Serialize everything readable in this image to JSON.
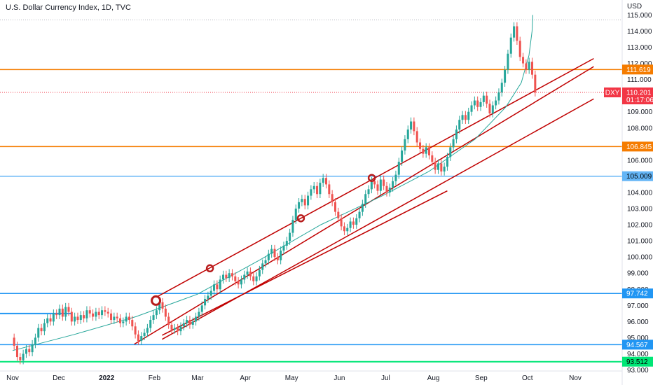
{
  "chart_data": {
    "type": "candlestick",
    "title": "U.S. Dollar Currency Index, 1D, TVC",
    "currency": "USD",
    "y_axis": {
      "ticks": [
        "93.000",
        "94.000",
        "95.000",
        "96.000",
        "97.000",
        "98.000",
        "99.000",
        "100.000",
        "101.000",
        "102.000",
        "103.000",
        "104.000",
        "105.000",
        "106.000",
        "107.000",
        "108.000",
        "109.000",
        "110.000",
        "111.000",
        "112.000",
        "113.000",
        "114.000",
        "115.000"
      ],
      "range": [
        93.0,
        115.0
      ]
    },
    "x_axis": {
      "ticks": [
        {
          "label": "Nov",
          "day": 0
        },
        {
          "label": "Dec",
          "day": 30
        },
        {
          "label": "2022",
          "day": 61,
          "year": true
        },
        {
          "label": "Feb",
          "day": 92
        },
        {
          "label": "Mar",
          "day": 120
        },
        {
          "label": "Apr",
          "day": 151
        },
        {
          "label": "May",
          "day": 181
        },
        {
          "label": "Jun",
          "day": 212
        },
        {
          "label": "Jul",
          "day": 242
        },
        {
          "label": "Aug",
          "day": 273
        },
        {
          "label": "Sep",
          "day": 304
        },
        {
          "label": "Oct",
          "day": 334
        },
        {
          "label": "Nov",
          "day": 365
        }
      ]
    },
    "levels": [
      {
        "name": "level-111-619",
        "price": 111.619,
        "label": "111.619",
        "color": "#f57c00",
        "width": 1.5
      },
      {
        "name": "level-106-845",
        "price": 106.845,
        "label": "106.845",
        "color": "#f57c00",
        "width": 1.5
      },
      {
        "name": "level-105-009",
        "price": 105.009,
        "label": "105.009",
        "color": "#64b5f6",
        "width": 1.5
      },
      {
        "name": "level-97-742",
        "price": 97.742,
        "label": "97.742",
        "color": "#2196f3",
        "width": 1.5
      },
      {
        "name": "level-94-567",
        "price": 94.567,
        "label": "94.567",
        "color": "#2196f3",
        "width": 1.5
      },
      {
        "name": "level-93-512",
        "price": 93.512,
        "label": "93.512",
        "color": "#00e676",
        "width": 2
      }
    ],
    "short_level": {
      "price": 96.5,
      "day_start": 0,
      "day_end": 38,
      "color": "#2196f3"
    },
    "current_price": {
      "symbol": "DXY",
      "price": 110.201,
      "countdown": "01:17:06",
      "color": "#f23645"
    },
    "high_marker": {
      "price": 114.7
    },
    "trend_lines": [
      {
        "name": "channel-upper-line",
        "from": {
          "day": 93,
          "price": 97.5
        },
        "to": {
          "day": 377,
          "price": 112.3
        },
        "color": "#c00000"
      },
      {
        "name": "channel-middle-line",
        "from": {
          "day": 79,
          "price": 94.6
        },
        "to": {
          "day": 377,
          "price": 111.8
        },
        "color": "#c00000"
      },
      {
        "name": "channel-lower-line",
        "from": {
          "day": 97,
          "price": 94.9
        },
        "to": {
          "day": 377,
          "price": 109.8
        },
        "color": "#c00000"
      },
      {
        "name": "short-lower-line",
        "from": {
          "day": 97,
          "price": 95.15
        },
        "to": {
          "day": 282,
          "price": 104.1
        },
        "color": "#c00000"
      }
    ],
    "touch_points": [
      {
        "day": 93,
        "price": 97.3,
        "large": true
      },
      {
        "day": 128,
        "price": 99.3,
        "large": false
      },
      {
        "day": 187,
        "price": 102.4,
        "large": false
      },
      {
        "day": 233,
        "price": 104.9,
        "large": false
      }
    ],
    "curve": {
      "color": "#26a69a",
      "points": [
        [
          0,
          94.2
        ],
        [
          40,
          95.2
        ],
        [
          80,
          96.3
        ],
        [
          120,
          97.7
        ],
        [
          160,
          99.8
        ],
        [
          200,
          102.0
        ],
        [
          240,
          103.8
        ],
        [
          270,
          105.3
        ],
        [
          300,
          107.3
        ],
        [
          320,
          109.3
        ],
        [
          330,
          110.8
        ],
        [
          335,
          112.5
        ],
        [
          337,
          114.0
        ],
        [
          337.5,
          115.0
        ]
      ]
    },
    "candles": [
      [
        95.0,
        94.5
      ],
      [
        94.5,
        93.8
      ],
      [
        93.8,
        93.6
      ],
      [
        93.6,
        94.0
      ],
      [
        94.0,
        94.3
      ],
      [
        94.3,
        94.1
      ],
      [
        94.1,
        94.6
      ],
      [
        94.6,
        95.0
      ],
      [
        95.0,
        95.6
      ],
      [
        95.6,
        95.4
      ],
      [
        95.4,
        95.9
      ],
      [
        95.9,
        96.2
      ],
      [
        96.2,
        96.0
      ],
      [
        96.0,
        96.5
      ],
      [
        96.5,
        96.4
      ],
      [
        96.4,
        96.8
      ],
      [
        96.8,
        96.3
      ],
      [
        96.3,
        96.9
      ],
      [
        96.9,
        96.6
      ],
      [
        96.6,
        96.0
      ],
      [
        96.0,
        96.3
      ],
      [
        96.3,
        96.1
      ],
      [
        96.1,
        96.4
      ],
      [
        96.4,
        96.2
      ],
      [
        96.2,
        96.7
      ],
      [
        96.7,
        96.5
      ],
      [
        96.5,
        96.3
      ],
      [
        96.3,
        96.6
      ],
      [
        96.6,
        96.4
      ],
      [
        96.4,
        96.7
      ],
      [
        96.7,
        96.6
      ],
      [
        96.6,
        96.5
      ],
      [
        96.5,
        96.1
      ],
      [
        96.1,
        96.3
      ],
      [
        96.3,
        96.2
      ],
      [
        96.2,
        95.9
      ],
      [
        95.9,
        96.0
      ],
      [
        96.0,
        96.3
      ],
      [
        96.3,
        96.1
      ],
      [
        96.1,
        95.7
      ],
      [
        95.7,
        95.2
      ],
      [
        95.2,
        94.8
      ],
      [
        94.8,
        95.1
      ],
      [
        95.1,
        95.3
      ],
      [
        95.3,
        95.6
      ],
      [
        95.6,
        96.1
      ],
      [
        96.1,
        96.4
      ],
      [
        96.4,
        96.7
      ],
      [
        96.7,
        97.2
      ],
      [
        97.2,
        96.8
      ],
      [
        96.8,
        96.3
      ],
      [
        96.3,
        95.8
      ],
      [
        95.8,
        95.5
      ],
      [
        95.5,
        95.6
      ],
      [
        95.6,
        95.4
      ],
      [
        95.4,
        95.7
      ],
      [
        95.7,
        95.9
      ],
      [
        95.9,
        96.1
      ],
      [
        96.1,
        95.8
      ],
      [
        95.8,
        96.0
      ],
      [
        96.0,
        96.3
      ],
      [
        96.3,
        96.6
      ],
      [
        96.6,
        97.0
      ],
      [
        97.0,
        97.4
      ],
      [
        97.4,
        97.6
      ],
      [
        97.6,
        97.9
      ],
      [
        97.9,
        98.3
      ],
      [
        98.3,
        98.0
      ],
      [
        98.0,
        98.6
      ],
      [
        98.6,
        98.9
      ],
      [
        98.9,
        98.7
      ],
      [
        98.7,
        99.0
      ],
      [
        99.0,
        98.8
      ],
      [
        98.8,
        98.5
      ],
      [
        98.5,
        98.3
      ],
      [
        98.3,
        98.6
      ],
      [
        98.6,
        98.9
      ],
      [
        98.9,
        99.1
      ],
      [
        99.1,
        98.8
      ],
      [
        98.8,
        98.5
      ],
      [
        98.5,
        98.8
      ],
      [
        98.8,
        99.2
      ],
      [
        99.2,
        99.6
      ],
      [
        99.6,
        99.8
      ],
      [
        99.8,
        100.2
      ],
      [
        100.2,
        100.5
      ],
      [
        100.5,
        100.0
      ],
      [
        100.0,
        99.8
      ],
      [
        99.8,
        100.4
      ],
      [
        100.4,
        100.7
      ],
      [
        100.7,
        101.0
      ],
      [
        101.0,
        101.5
      ],
      [
        101.5,
        102.3
      ],
      [
        102.3,
        103.0
      ],
      [
        103.0,
        103.4
      ],
      [
        103.4,
        103.6
      ],
      [
        103.6,
        103.2
      ],
      [
        103.2,
        103.8
      ],
      [
        103.8,
        104.2
      ],
      [
        104.2,
        104.4
      ],
      [
        104.4,
        103.9
      ],
      [
        103.9,
        104.6
      ],
      [
        104.6,
        104.9
      ],
      [
        104.9,
        104.5
      ],
      [
        104.5,
        103.9
      ],
      [
        103.9,
        103.4
      ],
      [
        103.4,
        102.8
      ],
      [
        102.8,
        102.4
      ],
      [
        102.4,
        101.9
      ],
      [
        101.9,
        101.6
      ],
      [
        101.6,
        101.8
      ],
      [
        101.8,
        102.2
      ],
      [
        102.2,
        102.0
      ],
      [
        102.0,
        102.4
      ],
      [
        102.4,
        102.8
      ],
      [
        102.8,
        103.3
      ],
      [
        103.3,
        103.9
      ],
      [
        103.9,
        104.2
      ],
      [
        104.2,
        104.7
      ],
      [
        104.7,
        104.5
      ],
      [
        104.5,
        104.1
      ],
      [
        104.1,
        104.8
      ],
      [
        104.8,
        104.4
      ],
      [
        104.4,
        104.0
      ],
      [
        104.0,
        104.3
      ],
      [
        104.3,
        104.7
      ],
      [
        104.7,
        105.1
      ],
      [
        105.1,
        105.9
      ],
      [
        105.9,
        106.6
      ],
      [
        106.6,
        107.3
      ],
      [
        107.3,
        107.9
      ],
      [
        107.9,
        108.4
      ],
      [
        108.4,
        107.8
      ],
      [
        107.8,
        107.1
      ],
      [
        107.1,
        106.7
      ],
      [
        106.7,
        106.4
      ],
      [
        106.4,
        106.8
      ],
      [
        106.8,
        106.3
      ],
      [
        106.3,
        105.9
      ],
      [
        105.9,
        105.4
      ],
      [
        105.4,
        105.8
      ],
      [
        105.8,
        105.3
      ],
      [
        105.3,
        105.6
      ],
      [
        105.6,
        106.2
      ],
      [
        106.2,
        106.8
      ],
      [
        106.8,
        107.3
      ],
      [
        107.3,
        107.9
      ],
      [
        107.9,
        108.5
      ],
      [
        108.5,
        108.8
      ],
      [
        108.8,
        108.5
      ],
      [
        108.5,
        109.0
      ],
      [
        109.0,
        109.4
      ],
      [
        109.4,
        109.7
      ],
      [
        109.7,
        109.3
      ],
      [
        109.3,
        109.6
      ],
      [
        109.6,
        110.0
      ],
      [
        110.0,
        109.5
      ],
      [
        109.5,
        108.9
      ],
      [
        108.9,
        109.4
      ],
      [
        109.4,
        109.7
      ],
      [
        109.7,
        110.2
      ],
      [
        110.2,
        110.8
      ],
      [
        110.8,
        111.6
      ],
      [
        111.6,
        112.6
      ],
      [
        112.6,
        113.6
      ],
      [
        113.6,
        114.3
      ],
      [
        114.3,
        113.4
      ],
      [
        113.4,
        112.4
      ],
      [
        112.4,
        112.0
      ],
      [
        112.0,
        111.6
      ],
      [
        111.6,
        112.1
      ],
      [
        112.1,
        111.3
      ],
      [
        111.3,
        110.2
      ]
    ]
  }
}
